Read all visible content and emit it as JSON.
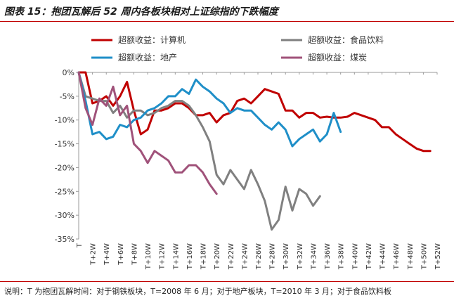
{
  "header": {
    "title": "图表 15：抱团瓦解后 52 周内各板块相对上证综指的下跌幅度"
  },
  "footer": {
    "note": "说明：T 为抱团瓦解时间：对于钢铁板块，T=2008 年 6 月；对于地产板块，T=2010 年 3 月；对于食品饮料板"
  },
  "chart_data": {
    "type": "line",
    "title": "抱团瓦解后 52 周内各板块相对上证综指的下跌幅度",
    "xlabel": "",
    "ylabel": "",
    "ylim": [
      -35,
      0
    ],
    "yticks": [
      0,
      -5,
      -10,
      -15,
      -20,
      -25,
      -30,
      -35
    ],
    "ytick_labels": [
      "0%",
      "-5%",
      "-10%",
      "-15%",
      "-20%",
      "-25%",
      "-30%",
      "-35%"
    ],
    "x_labels": [
      "T",
      "T+2W",
      "T+4W",
      "T+6W",
      "T+8W",
      "T+10W",
      "T+12W",
      "T+14W",
      "T+16W",
      "T+18W",
      "T+20W",
      "T+22W",
      "T+24W",
      "T+26W",
      "T+28W",
      "T+30W",
      "T+32W",
      "T+34W",
      "T+36W",
      "T+38W",
      "T+40W",
      "T+42W",
      "T+44W",
      "T+46W",
      "T+48W",
      "T+50W",
      "T+52W"
    ],
    "x_range": [
      0,
      52
    ],
    "grid": false,
    "legend_position": "top",
    "series": [
      {
        "name": "超额收益：计算机",
        "color": "#c00000",
        "x": [
          0,
          1,
          2,
          3,
          4,
          5,
          6,
          7,
          8,
          9,
          10,
          11,
          12,
          13,
          14,
          15,
          16,
          17,
          18,
          19,
          20,
          21,
          22,
          23,
          24,
          25,
          26,
          27,
          28,
          29,
          30,
          31,
          32,
          33,
          34,
          35,
          36,
          37,
          38,
          39,
          40,
          41,
          42,
          43,
          44,
          45,
          46,
          47,
          48,
          49,
          50,
          51
        ],
        "values": [
          0.0,
          0.0,
          -6.5,
          -6.0,
          -5.0,
          -7.0,
          -5.0,
          -2.0,
          -8.0,
          -13.0,
          -12.0,
          -8.0,
          -8.0,
          -7.5,
          -6.5,
          -6.5,
          -7.5,
          -9.0,
          -9.0,
          -8.5,
          -10.5,
          -9.0,
          -8.5,
          -6.0,
          -5.5,
          -6.5,
          -5.0,
          -3.5,
          -4.0,
          -4.5,
          -8.0,
          -8.0,
          -9.5,
          -8.5,
          -8.5,
          -9.5,
          -9.3,
          -9.5,
          -9.5,
          -9.3,
          -8.5,
          -9.0,
          -9.5,
          -10.0,
          -11.5,
          -11.5,
          -13.0,
          -14.0,
          -15.0,
          -16.0,
          -16.5,
          -16.5
        ]
      },
      {
        "name": "超额收益：食品饮料",
        "color": "#808080",
        "x": [
          0,
          1,
          2,
          3,
          4,
          5,
          6,
          7,
          8,
          9,
          10,
          11,
          12,
          13,
          14,
          15,
          16,
          17,
          18,
          19,
          20,
          21,
          22,
          23,
          24,
          25,
          26,
          27,
          28,
          29,
          30,
          31,
          32,
          33,
          34,
          35
        ],
        "values": [
          0.0,
          -5.0,
          -5.5,
          -6.0,
          -6.0,
          -8.5,
          -7.0,
          -9.5,
          -8.0,
          -8.0,
          -9.0,
          -8.5,
          -7.5,
          -7.0,
          -6.0,
          -6.0,
          -7.0,
          -9.0,
          -11.5,
          -14.5,
          -21.5,
          -23.5,
          -20.5,
          -22.5,
          -24.5,
          -20.5,
          -23.5,
          -27.0,
          -33.0,
          -31.0,
          -24.0,
          -29.0,
          -24.5,
          -25.5,
          -28.0,
          -26.0
        ]
      },
      {
        "name": "超额收益：地产",
        "color": "#1f8fc8",
        "x": [
          0,
          1,
          2,
          3,
          4,
          5,
          6,
          7,
          8,
          9,
          10,
          11,
          12,
          13,
          14,
          15,
          16,
          17,
          18,
          19,
          20,
          21,
          22,
          23,
          24,
          25,
          26,
          27,
          28,
          29,
          30,
          31,
          32,
          33,
          34,
          35,
          36,
          37,
          38
        ],
        "values": [
          0.0,
          -6.0,
          -13.0,
          -12.5,
          -14.0,
          -13.5,
          -11.0,
          -11.5,
          -10.0,
          -9.5,
          -8.0,
          -7.5,
          -6.5,
          -5.0,
          -5.0,
          -3.5,
          -4.5,
          -1.5,
          -3.0,
          -4.0,
          -5.5,
          -6.5,
          -8.5,
          -7.5,
          -8.0,
          -8.0,
          -9.5,
          -11.0,
          -12.0,
          -10.5,
          -12.0,
          -15.5,
          -14.0,
          -13.0,
          -12.0,
          -14.5,
          -13.0,
          -8.5,
          -12.5
        ]
      },
      {
        "name": "超额收益：煤炭",
        "color": "#a0527a",
        "x": [
          0,
          1,
          2,
          3,
          4,
          5,
          6,
          7,
          8,
          9,
          10,
          11,
          12,
          13,
          14,
          15,
          16,
          17,
          18,
          19,
          20
        ],
        "values": [
          0.0,
          -7.5,
          -11.0,
          -5.5,
          -7.0,
          -3.0,
          -9.0,
          -7.0,
          -15.0,
          -16.5,
          -19.0,
          -16.5,
          -17.5,
          -18.5,
          -21.0,
          -21.0,
          -19.5,
          -19.5,
          -21.0,
          -23.5,
          -25.5
        ]
      }
    ]
  }
}
